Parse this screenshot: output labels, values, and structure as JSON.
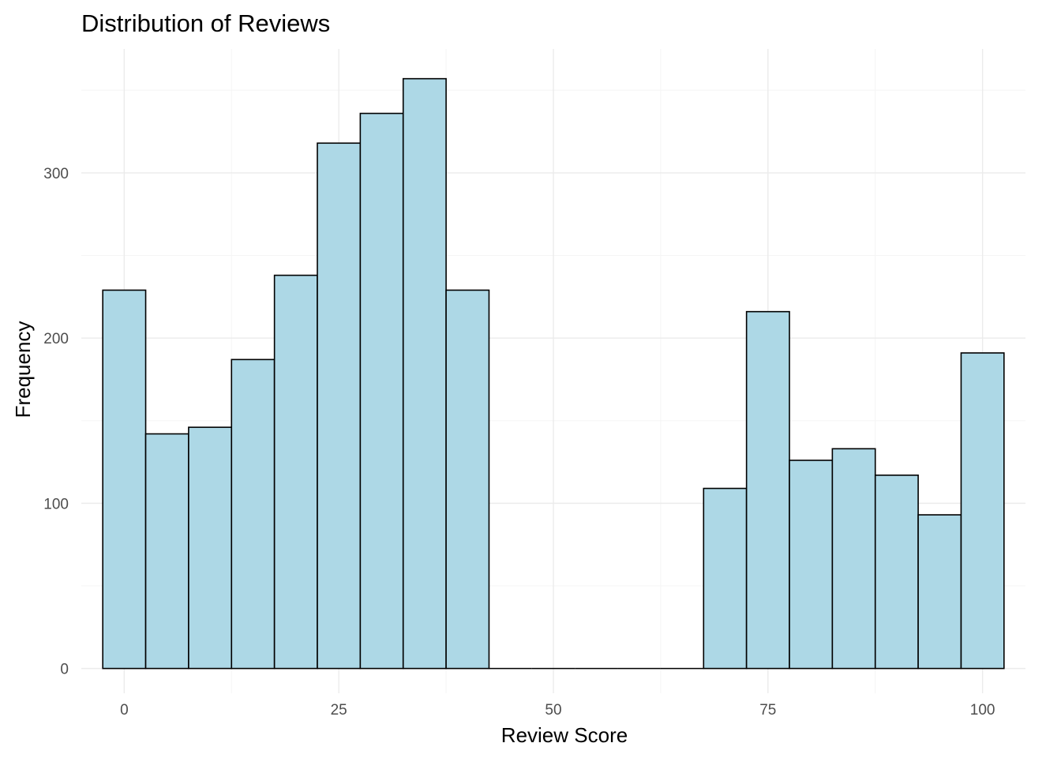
{
  "chart_data": {
    "type": "bar",
    "title": "Distribution of Reviews",
    "xlabel": "Review Score",
    "ylabel": "Frequency",
    "bin_width": 5,
    "xlim": [
      -5,
      105
    ],
    "ylim": [
      -15,
      375
    ],
    "x_ticks": [
      0,
      25,
      50,
      75,
      100
    ],
    "y_ticks": [
      0,
      100,
      200,
      300
    ],
    "grid": true,
    "bins": [
      {
        "center": 0,
        "count": 229
      },
      {
        "center": 5,
        "count": 142
      },
      {
        "center": 10,
        "count": 146
      },
      {
        "center": 15,
        "count": 187
      },
      {
        "center": 20,
        "count": 238
      },
      {
        "center": 25,
        "count": 318
      },
      {
        "center": 30,
        "count": 336
      },
      {
        "center": 35,
        "count": 357
      },
      {
        "center": 40,
        "count": 229
      },
      {
        "center": 45,
        "count": 0
      },
      {
        "center": 50,
        "count": 0
      },
      {
        "center": 55,
        "count": 0
      },
      {
        "center": 60,
        "count": 0
      },
      {
        "center": 65,
        "count": 0
      },
      {
        "center": 70,
        "count": 109
      },
      {
        "center": 75,
        "count": 216
      },
      {
        "center": 80,
        "count": 126
      },
      {
        "center": 85,
        "count": 133
      },
      {
        "center": 90,
        "count": 117
      },
      {
        "center": 95,
        "count": 93
      },
      {
        "center": 100,
        "count": 191
      }
    ],
    "colors": {
      "bar_fill": "#add8e6",
      "bar_stroke": "#000000",
      "grid_major": "#ebebeb",
      "grid_minor": "#f5f5f5",
      "tick_text": "#4d4d4d"
    }
  }
}
